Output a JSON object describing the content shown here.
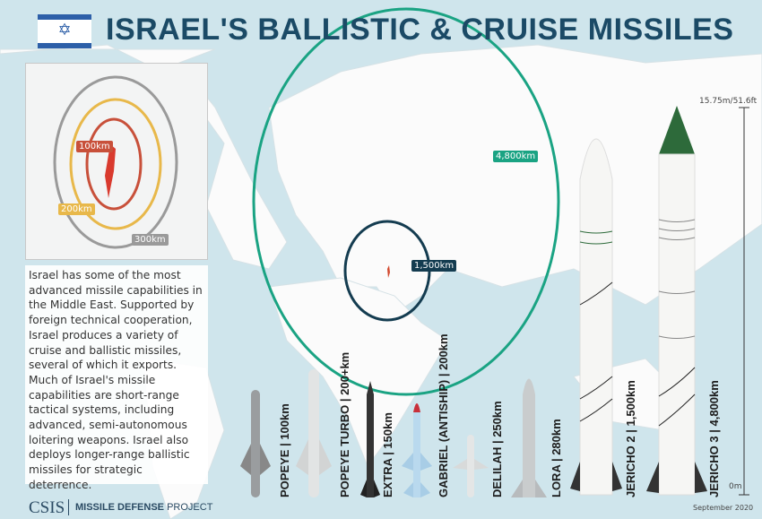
{
  "title": "ISRAEL'S BALLISTIC & CRUISE MISSILES",
  "description": "Israel has some of the most advanced missile capabilities in the Middle East. Supported by foreign technical cooperation, Israel produces a variety of cruise and ballistic missiles, several of which it exports. Much of Israel's missile capabilities are short-range tactical systems, including advanced, semi-autonomous loitering weapons. Israel also deploys longer-range ballistic missiles for strategic deterrence.",
  "inset": {
    "rings": [
      {
        "label": "100km",
        "color": "#c8503a"
      },
      {
        "label": "200km",
        "color": "#e8b84a"
      },
      {
        "label": "300km",
        "color": "#9a9a9a"
      }
    ]
  },
  "map": {
    "ranges": [
      {
        "label": "4,800km",
        "color": "#1aa383"
      },
      {
        "label": "1,500km",
        "color": "#143c50"
      }
    ]
  },
  "missiles": [
    {
      "label": "POPEYE | 100km"
    },
    {
      "label": "POPEYE TURBO | 200+km"
    },
    {
      "label": "EXTRA | 150km"
    },
    {
      "label": "GABRIEL (ANTISHIP) | 200km"
    },
    {
      "label": "DELILAH | 250km"
    },
    {
      "label": "LORA | 280km"
    },
    {
      "label": "JERICHO 2 | 1,500km"
    },
    {
      "label": "JERICHO 3 | 4,800km"
    }
  ],
  "scale": {
    "top": "15.75m/51.6ft",
    "bottom": "0m"
  },
  "footer": {
    "logo": "CSIS",
    "project_bold": "MISSILE DEFENSE",
    "project": " PROJECT",
    "date": "September 2020"
  }
}
